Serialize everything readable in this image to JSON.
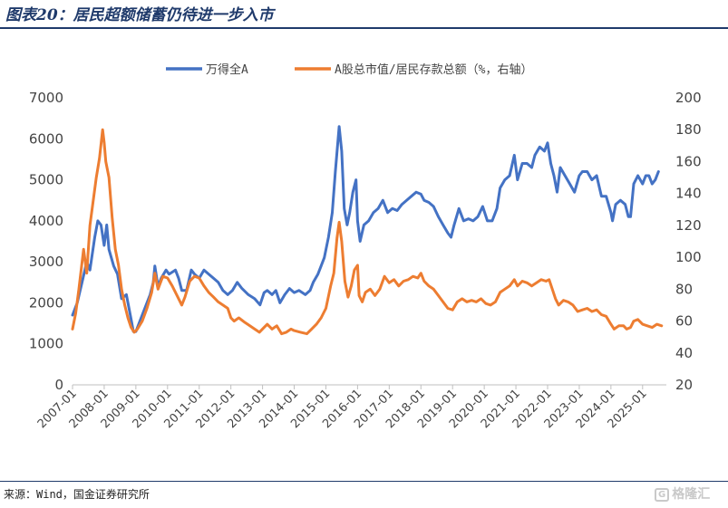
{
  "header": {
    "title": "图表20：居民超额储蓄仍待进一步入市"
  },
  "footer": {
    "source": "来源：Wind，国金证券研究所",
    "watermark": "格隆汇"
  },
  "colors": {
    "wind_all_a": "#4472c4",
    "mktcap_ratio": "#ed7d31",
    "frame": "#1f3a6b",
    "axis": "#bfbfbf"
  },
  "chart_data": {
    "type": "line",
    "title": "",
    "legend_position": "top",
    "grid": false,
    "x_range": [
      2007.0,
      2025.75
    ],
    "x_tick_labels": [
      "2007-01",
      "2008-01",
      "2009-01",
      "2010-01",
      "2011-01",
      "2012-01",
      "2013-01",
      "2014-01",
      "2015-01",
      "2016-01",
      "2017-01",
      "2018-01",
      "2019-01",
      "2020-01",
      "2021-01",
      "2022-01",
      "2023-01",
      "2024-01",
      "2025-01"
    ],
    "y_left": {
      "min": 0,
      "max": 7000,
      "ticks": [
        "0",
        "1000",
        "2000",
        "3000",
        "4000",
        "5000",
        "6000",
        "7000"
      ]
    },
    "y_right": {
      "min": 20,
      "max": 200,
      "ticks": [
        "20",
        "40",
        "60",
        "80",
        "100",
        "120",
        "140",
        "160",
        "180",
        "200"
      ]
    },
    "series": [
      {
        "name": "万得全A",
        "axis": "left",
        "color": "#4472c4",
        "points": [
          [
            2007.0,
            1700
          ],
          [
            2007.15,
            2000
          ],
          [
            2007.3,
            2500
          ],
          [
            2007.45,
            3000
          ],
          [
            2007.55,
            2800
          ],
          [
            2007.7,
            3600
          ],
          [
            2007.8,
            4000
          ],
          [
            2007.9,
            3900
          ],
          [
            2008.0,
            3400
          ],
          [
            2008.08,
            3900
          ],
          [
            2008.15,
            3300
          ],
          [
            2008.3,
            2900
          ],
          [
            2008.42,
            2700
          ],
          [
            2008.55,
            2100
          ],
          [
            2008.7,
            2200
          ],
          [
            2008.85,
            1600
          ],
          [
            2008.92,
            1300
          ],
          [
            2009.0,
            1300
          ],
          [
            2009.15,
            1600
          ],
          [
            2009.3,
            1900
          ],
          [
            2009.45,
            2200
          ],
          [
            2009.55,
            2500
          ],
          [
            2009.6,
            2900
          ],
          [
            2009.7,
            2400
          ],
          [
            2009.8,
            2600
          ],
          [
            2009.95,
            2800
          ],
          [
            2010.05,
            2700
          ],
          [
            2010.25,
            2800
          ],
          [
            2010.35,
            2600
          ],
          [
            2010.45,
            2300
          ],
          [
            2010.6,
            2300
          ],
          [
            2010.75,
            2800
          ],
          [
            2010.85,
            2700
          ],
          [
            2011.0,
            2600
          ],
          [
            2011.15,
            2800
          ],
          [
            2011.3,
            2700
          ],
          [
            2011.45,
            2600
          ],
          [
            2011.6,
            2500
          ],
          [
            2011.75,
            2300
          ],
          [
            2011.9,
            2200
          ],
          [
            2012.05,
            2300
          ],
          [
            2012.2,
            2500
          ],
          [
            2012.35,
            2350
          ],
          [
            2012.55,
            2200
          ],
          [
            2012.75,
            2100
          ],
          [
            2012.92,
            1950
          ],
          [
            2013.05,
            2250
          ],
          [
            2013.15,
            2300
          ],
          [
            2013.3,
            2200
          ],
          [
            2013.42,
            2300
          ],
          [
            2013.55,
            2000
          ],
          [
            2013.7,
            2200
          ],
          [
            2013.85,
            2350
          ],
          [
            2014.0,
            2250
          ],
          [
            2014.15,
            2300
          ],
          [
            2014.35,
            2200
          ],
          [
            2014.5,
            2300
          ],
          [
            2014.6,
            2500
          ],
          [
            2014.75,
            2700
          ],
          [
            2014.85,
            2900
          ],
          [
            2014.95,
            3100
          ],
          [
            2015.08,
            3600
          ],
          [
            2015.2,
            4200
          ],
          [
            2015.3,
            5200
          ],
          [
            2015.42,
            6300
          ],
          [
            2015.5,
            5700
          ],
          [
            2015.58,
            4300
          ],
          [
            2015.67,
            3900
          ],
          [
            2015.75,
            4200
          ],
          [
            2015.85,
            4700
          ],
          [
            2015.95,
            5000
          ],
          [
            2016.0,
            4000
          ],
          [
            2016.08,
            3500
          ],
          [
            2016.2,
            3900
          ],
          [
            2016.35,
            4000
          ],
          [
            2016.5,
            4200
          ],
          [
            2016.65,
            4300
          ],
          [
            2016.8,
            4500
          ],
          [
            2016.95,
            4200
          ],
          [
            2017.1,
            4300
          ],
          [
            2017.25,
            4250
          ],
          [
            2017.4,
            4400
          ],
          [
            2017.55,
            4500
          ],
          [
            2017.7,
            4600
          ],
          [
            2017.85,
            4700
          ],
          [
            2018.0,
            4650
          ],
          [
            2018.1,
            4500
          ],
          [
            2018.25,
            4450
          ],
          [
            2018.4,
            4350
          ],
          [
            2018.55,
            4100
          ],
          [
            2018.7,
            3900
          ],
          [
            2018.85,
            3700
          ],
          [
            2018.95,
            3600
          ],
          [
            2019.05,
            3900
          ],
          [
            2019.2,
            4300
          ],
          [
            2019.35,
            4000
          ],
          [
            2019.5,
            4050
          ],
          [
            2019.65,
            4000
          ],
          [
            2019.8,
            4100
          ],
          [
            2019.95,
            4350
          ],
          [
            2020.1,
            4000
          ],
          [
            2020.25,
            4000
          ],
          [
            2020.4,
            4300
          ],
          [
            2020.5,
            4800
          ],
          [
            2020.65,
            5000
          ],
          [
            2020.8,
            5100
          ],
          [
            2020.95,
            5600
          ],
          [
            2021.05,
            5000
          ],
          [
            2021.2,
            5400
          ],
          [
            2021.35,
            5400
          ],
          [
            2021.5,
            5300
          ],
          [
            2021.6,
            5600
          ],
          [
            2021.75,
            5800
          ],
          [
            2021.9,
            5700
          ],
          [
            2022.0,
            5900
          ],
          [
            2022.1,
            5400
          ],
          [
            2022.2,
            5100
          ],
          [
            2022.3,
            4700
          ],
          [
            2022.4,
            5300
          ],
          [
            2022.55,
            5100
          ],
          [
            2022.7,
            4900
          ],
          [
            2022.85,
            4700
          ],
          [
            2023.0,
            5100
          ],
          [
            2023.1,
            5200
          ],
          [
            2023.25,
            5200
          ],
          [
            2023.4,
            5000
          ],
          [
            2023.55,
            5100
          ],
          [
            2023.7,
            4600
          ],
          [
            2023.85,
            4600
          ],
          [
            2024.0,
            4200
          ],
          [
            2024.05,
            4000
          ],
          [
            2024.15,
            4400
          ],
          [
            2024.3,
            4500
          ],
          [
            2024.45,
            4400
          ],
          [
            2024.55,
            4100
          ],
          [
            2024.62,
            4100
          ],
          [
            2024.72,
            4900
          ],
          [
            2024.85,
            5100
          ],
          [
            2025.0,
            4900
          ],
          [
            2025.1,
            5100
          ],
          [
            2025.2,
            5100
          ],
          [
            2025.3,
            4900
          ],
          [
            2025.4,
            5000
          ],
          [
            2025.5,
            5200
          ]
        ]
      },
      {
        "name": "A股总市值/居民存款总额（%，右轴）",
        "axis": "right",
        "color": "#ed7d31",
        "points": [
          [
            2007.0,
            55
          ],
          [
            2007.1,
            65
          ],
          [
            2007.2,
            80
          ],
          [
            2007.35,
            105
          ],
          [
            2007.45,
            90
          ],
          [
            2007.55,
            120
          ],
          [
            2007.65,
            135
          ],
          [
            2007.75,
            150
          ],
          [
            2007.85,
            162
          ],
          [
            2007.95,
            180
          ],
          [
            2008.0,
            172
          ],
          [
            2008.05,
            160
          ],
          [
            2008.15,
            150
          ],
          [
            2008.25,
            125
          ],
          [
            2008.35,
            105
          ],
          [
            2008.45,
            95
          ],
          [
            2008.55,
            80
          ],
          [
            2008.65,
            70
          ],
          [
            2008.75,
            62
          ],
          [
            2008.85,
            56
          ],
          [
            2008.95,
            53
          ],
          [
            2009.05,
            55
          ],
          [
            2009.2,
            60
          ],
          [
            2009.35,
            68
          ],
          [
            2009.5,
            78
          ],
          [
            2009.6,
            90
          ],
          [
            2009.7,
            80
          ],
          [
            2009.85,
            88
          ],
          [
            2010.0,
            87
          ],
          [
            2010.15,
            82
          ],
          [
            2010.3,
            76
          ],
          [
            2010.45,
            70
          ],
          [
            2010.55,
            75
          ],
          [
            2010.7,
            85
          ],
          [
            2010.85,
            88
          ],
          [
            2011.0,
            87
          ],
          [
            2011.15,
            82
          ],
          [
            2011.3,
            78
          ],
          [
            2011.45,
            75
          ],
          [
            2011.6,
            72
          ],
          [
            2011.75,
            70
          ],
          [
            2011.9,
            68
          ],
          [
            2012.0,
            62
          ],
          [
            2012.1,
            60
          ],
          [
            2012.25,
            62
          ],
          [
            2012.45,
            59
          ],
          [
            2012.6,
            57
          ],
          [
            2012.75,
            55
          ],
          [
            2012.9,
            53
          ],
          [
            2013.05,
            56
          ],
          [
            2013.15,
            58
          ],
          [
            2013.3,
            55
          ],
          [
            2013.45,
            57
          ],
          [
            2013.6,
            52
          ],
          [
            2013.75,
            53
          ],
          [
            2013.9,
            55
          ],
          [
            2014.0,
            54
          ],
          [
            2014.2,
            53
          ],
          [
            2014.4,
            52
          ],
          [
            2014.55,
            55
          ],
          [
            2014.7,
            58
          ],
          [
            2014.85,
            62
          ],
          [
            2015.0,
            68
          ],
          [
            2015.15,
            82
          ],
          [
            2015.25,
            90
          ],
          [
            2015.35,
            112
          ],
          [
            2015.42,
            122
          ],
          [
            2015.5,
            110
          ],
          [
            2015.6,
            85
          ],
          [
            2015.7,
            75
          ],
          [
            2015.8,
            82
          ],
          [
            2015.9,
            92
          ],
          [
            2016.0,
            95
          ],
          [
            2016.05,
            76
          ],
          [
            2016.15,
            72
          ],
          [
            2016.25,
            78
          ],
          [
            2016.4,
            80
          ],
          [
            2016.55,
            76
          ],
          [
            2016.7,
            80
          ],
          [
            2016.85,
            88
          ],
          [
            2017.0,
            84
          ],
          [
            2017.15,
            86
          ],
          [
            2017.3,
            82
          ],
          [
            2017.45,
            85
          ],
          [
            2017.6,
            86
          ],
          [
            2017.75,
            88
          ],
          [
            2017.9,
            87
          ],
          [
            2018.0,
            90
          ],
          [
            2018.1,
            85
          ],
          [
            2018.25,
            82
          ],
          [
            2018.4,
            80
          ],
          [
            2018.55,
            76
          ],
          [
            2018.7,
            72
          ],
          [
            2018.85,
            68
          ],
          [
            2019.0,
            67
          ],
          [
            2019.15,
            72
          ],
          [
            2019.3,
            74
          ],
          [
            2019.45,
            72
          ],
          [
            2019.6,
            73
          ],
          [
            2019.75,
            72
          ],
          [
            2019.9,
            74
          ],
          [
            2020.05,
            71
          ],
          [
            2020.2,
            70
          ],
          [
            2020.35,
            72
          ],
          [
            2020.5,
            78
          ],
          [
            2020.65,
            80
          ],
          [
            2020.8,
            82
          ],
          [
            2020.95,
            86
          ],
          [
            2021.05,
            82
          ],
          [
            2021.2,
            85
          ],
          [
            2021.35,
            84
          ],
          [
            2021.5,
            82
          ],
          [
            2021.65,
            84
          ],
          [
            2021.8,
            86
          ],
          [
            2021.95,
            85
          ],
          [
            2022.05,
            86
          ],
          [
            2022.15,
            80
          ],
          [
            2022.25,
            74
          ],
          [
            2022.35,
            70
          ],
          [
            2022.5,
            73
          ],
          [
            2022.65,
            72
          ],
          [
            2022.8,
            70
          ],
          [
            2022.95,
            66
          ],
          [
            2023.1,
            67
          ],
          [
            2023.25,
            68
          ],
          [
            2023.4,
            66
          ],
          [
            2023.55,
            67
          ],
          [
            2023.7,
            64
          ],
          [
            2023.85,
            63
          ],
          [
            2024.0,
            58
          ],
          [
            2024.1,
            55
          ],
          [
            2024.25,
            57
          ],
          [
            2024.4,
            57
          ],
          [
            2024.5,
            55
          ],
          [
            2024.62,
            56
          ],
          [
            2024.72,
            60
          ],
          [
            2024.85,
            61
          ],
          [
            2025.0,
            58
          ],
          [
            2025.15,
            57
          ],
          [
            2025.3,
            56
          ],
          [
            2025.45,
            58
          ],
          [
            2025.6,
            57
          ]
        ]
      }
    ]
  }
}
